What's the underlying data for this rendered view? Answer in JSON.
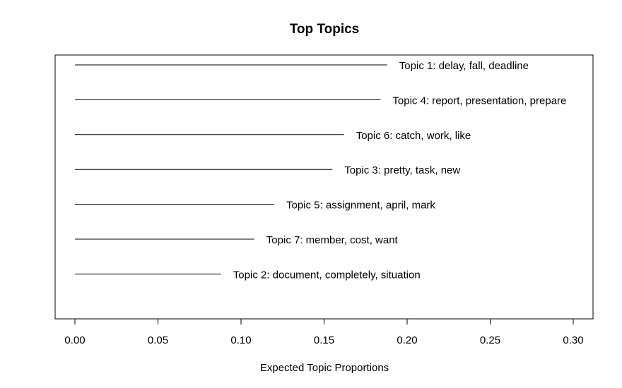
{
  "chart_data": {
    "type": "bar",
    "title": "Top Topics",
    "xlabel": "Expected Topic Proportions",
    "ylabel": "",
    "xlim": [
      0,
      0.3
    ],
    "xticks": [
      "0.00",
      "0.05",
      "0.10",
      "0.15",
      "0.20",
      "0.25",
      "0.30"
    ],
    "tick_values": [
      0,
      0.05,
      0.1,
      0.15,
      0.2,
      0.25,
      0.3
    ],
    "orientation": "horizontal",
    "categories": [
      "Topic 1: delay, fall, deadline",
      "Topic 4: report, presentation, prepare",
      "Topic 6: catch, work, like",
      "Topic 3: pretty, task, new",
      "Topic 5: assignment, april, mark",
      "Topic 7: member, cost, want",
      "Topic 2: document, completely, situation"
    ],
    "values": [
      0.188,
      0.184,
      0.162,
      0.155,
      0.12,
      0.108,
      0.088
    ],
    "grid": false,
    "legend": "none"
  }
}
